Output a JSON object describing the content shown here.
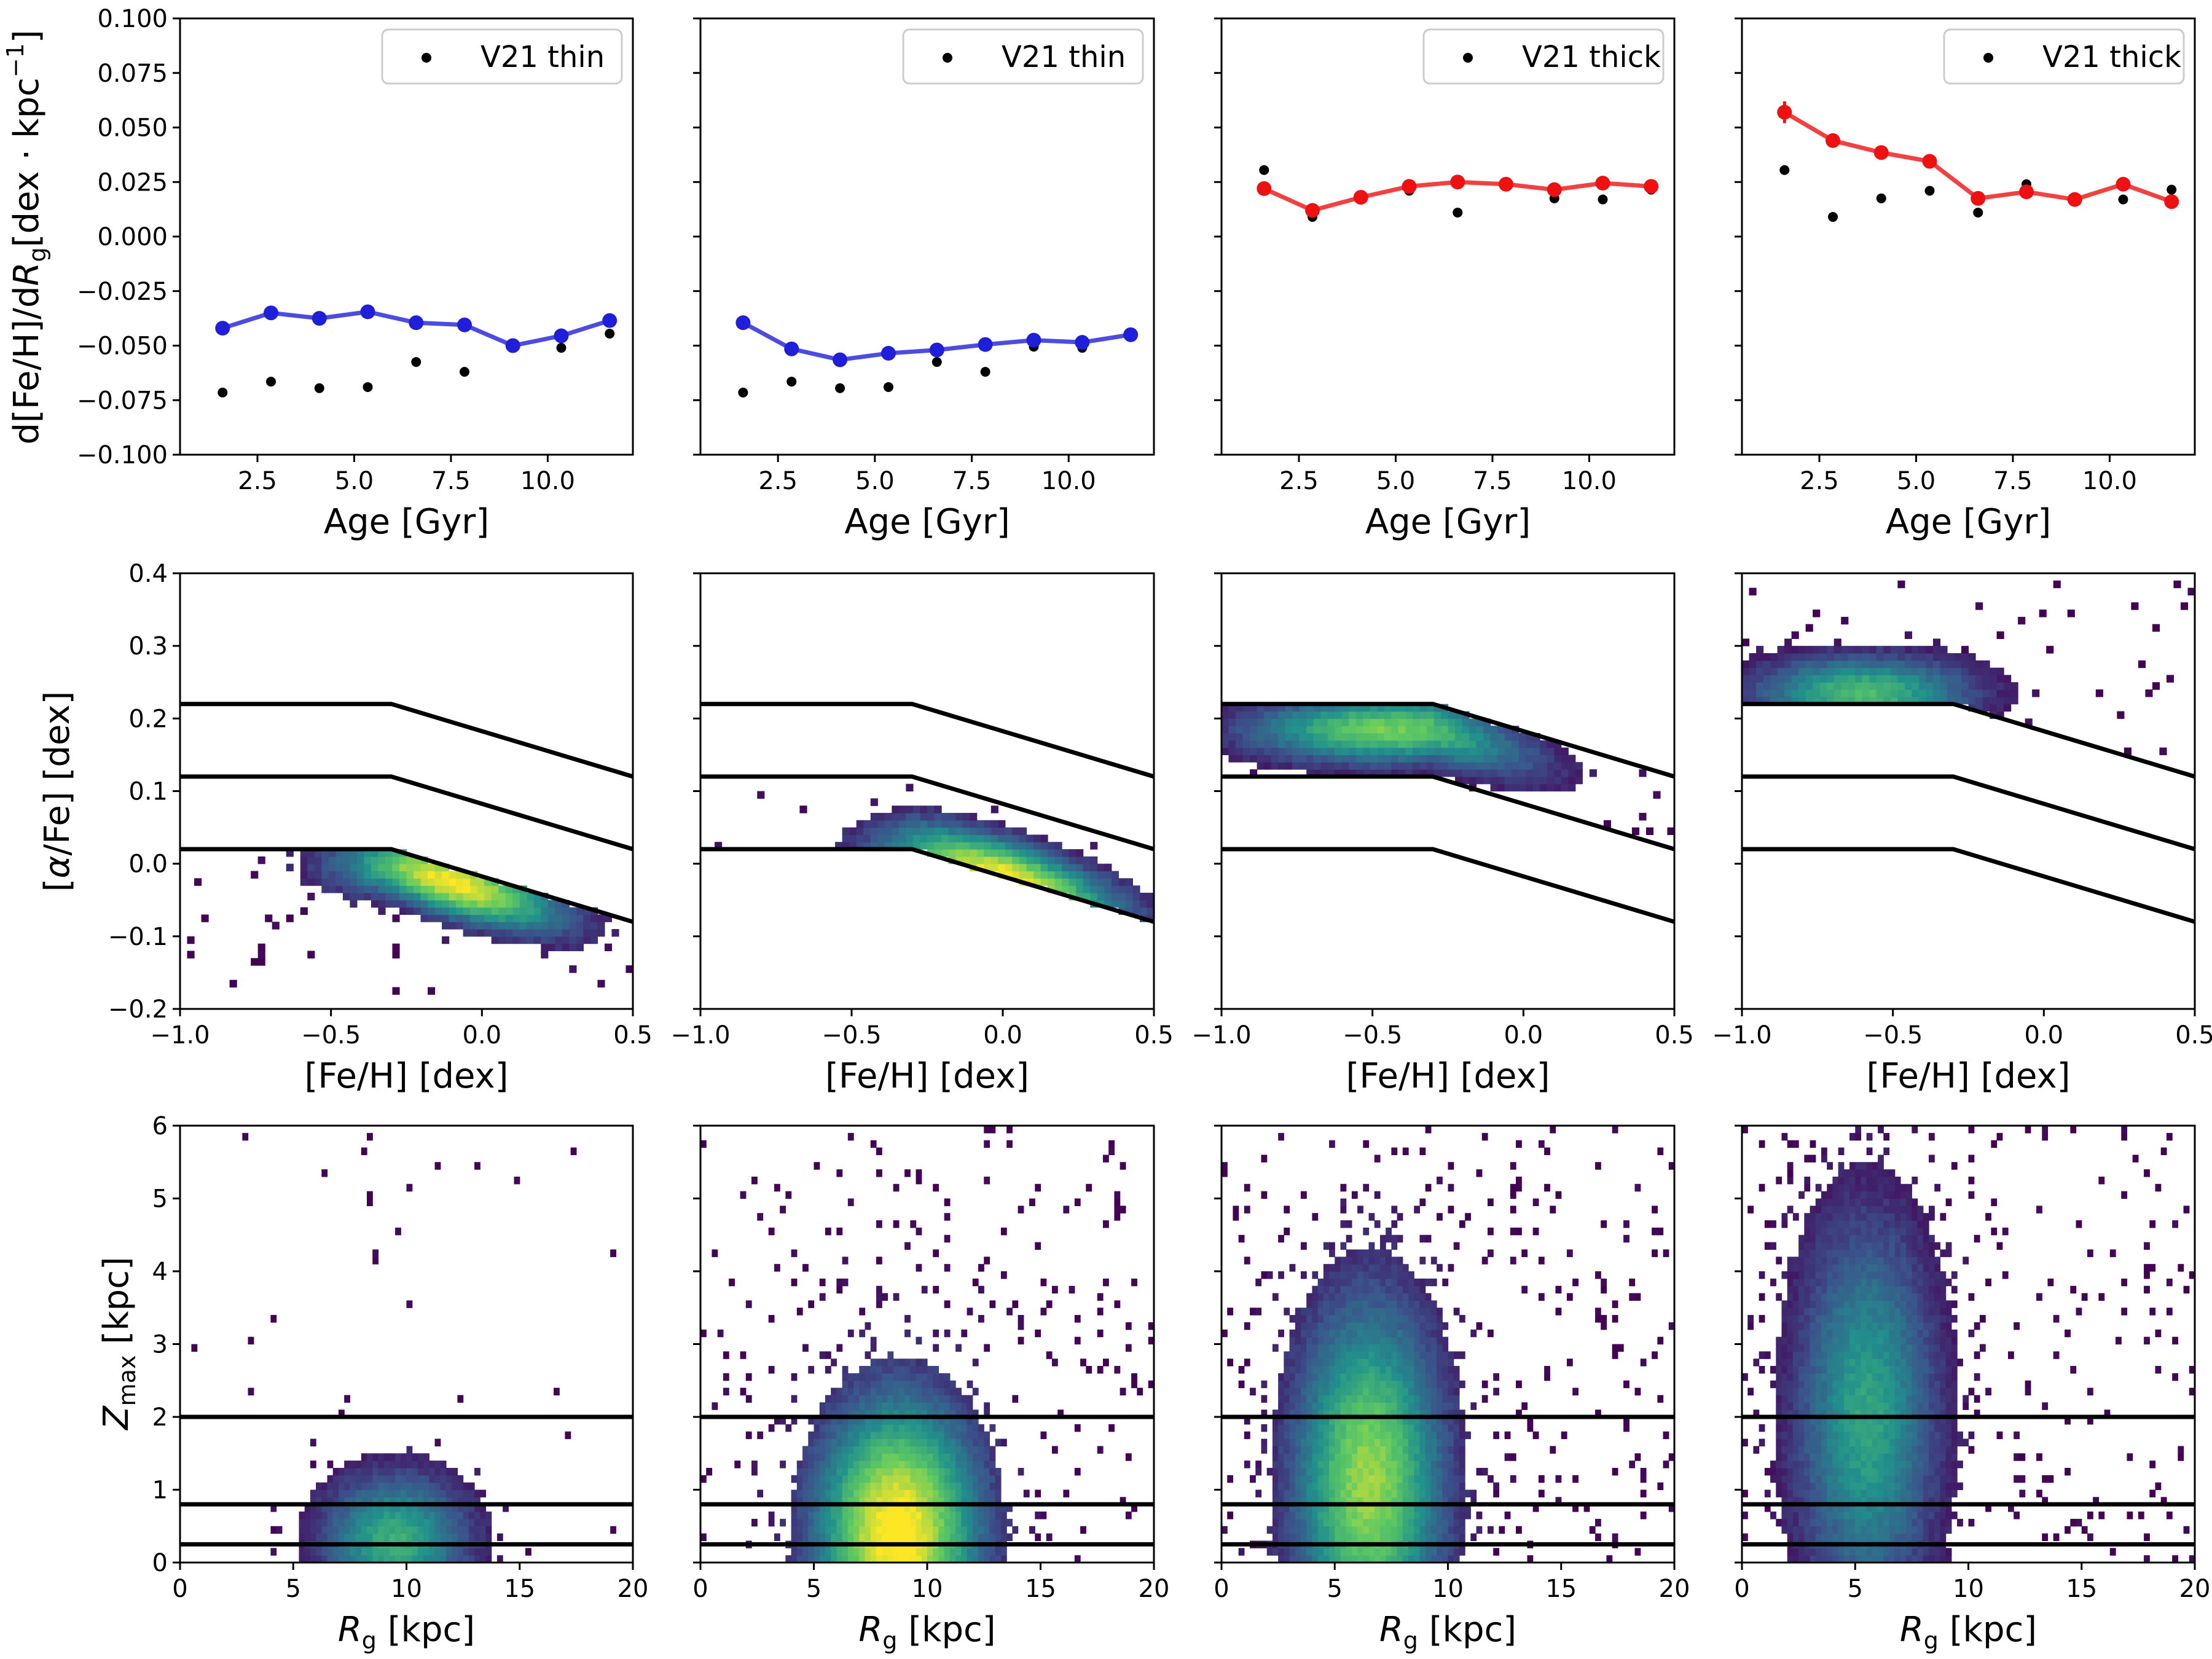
{
  "chart_data": {
    "type": "scatter",
    "rows": [
      {
        "row": "gradient",
        "xlabel": "Age [Gyr]",
        "ylabel": "d[Fe/H]/dR_g [dex · kpc⁻¹]",
        "xlim": [
          0.5,
          12.2
        ],
        "ylim": [
          -0.1,
          0.1
        ],
        "xticks": [
          "2.5",
          "5.0",
          "7.5",
          "10.0"
        ],
        "yticks": [
          "−0.100",
          "−0.075",
          "−0.050",
          "−0.025",
          "0.000",
          "0.025",
          "0.050",
          "0.075",
          "0.100"
        ],
        "legend_placement": "top-right",
        "panels": [
          {
            "legend": "V21 thin",
            "series_color": "#1f1fd9",
            "x": [
              1.6,
              2.85,
              4.1,
              5.35,
              6.6,
              7.85,
              9.1,
              10.35,
              11.6
            ],
            "y": [
              -0.042,
              -0.035,
              -0.0375,
              -0.0345,
              -0.0395,
              -0.0405,
              -0.05,
              -0.0455,
              -0.0385
            ],
            "ref_y": [
              -0.0715,
              -0.0665,
              -0.0695,
              -0.069,
              -0.0575,
              -0.062,
              -0.0505,
              -0.051,
              -0.0445
            ]
          },
          {
            "legend": "V21 thin",
            "series_color": "#1f1fd9",
            "x": [
              1.6,
              2.85,
              4.1,
              5.35,
              6.6,
              7.85,
              9.1,
              10.35,
              11.6
            ],
            "y": [
              -0.0395,
              -0.0515,
              -0.0565,
              -0.0535,
              -0.052,
              -0.0495,
              -0.0475,
              -0.0485,
              -0.045
            ],
            "ref_y": [
              -0.0715,
              -0.0665,
              -0.0695,
              -0.069,
              -0.0575,
              -0.062,
              -0.0505,
              -0.051,
              -0.0445
            ]
          },
          {
            "legend": "V21 thick",
            "series_color": "#ee1111",
            "x": [
              1.6,
              2.85,
              4.1,
              5.35,
              6.6,
              7.85,
              9.1,
              10.35,
              11.6
            ],
            "y": [
              0.022,
              0.012,
              0.018,
              0.023,
              0.025,
              0.024,
              0.0215,
              0.0245,
              0.023
            ],
            "ref_y": [
              0.0305,
              0.009,
              0.0175,
              0.021,
              0.011,
              0.024,
              0.0175,
              0.017,
              0.0215
            ]
          },
          {
            "legend": "V21 thick",
            "series_color": "#ee1111",
            "x": [
              1.6,
              2.85,
              4.1,
              5.35,
              6.6,
              7.85,
              9.1,
              10.35,
              11.6
            ],
            "y": [
              0.057,
              0.044,
              0.0385,
              0.0345,
              0.0175,
              0.0205,
              0.017,
              0.024,
              0.016
            ],
            "yerr": [
              0.005,
              0.002,
              0.0015,
              0.0015,
              0.002,
              0.0015,
              0.0015,
              0.0015,
              0.0015
            ],
            "ref_y": [
              0.0305,
              0.009,
              0.0175,
              0.021,
              0.011,
              0.024,
              0.0175,
              0.017,
              0.0215
            ]
          }
        ]
      },
      {
        "row": "alpha_feh",
        "type": "heatmap",
        "xlabel": "[Fe/H] [dex]",
        "ylabel": "[α/Fe] [dex]",
        "xlim": [
          -1.0,
          0.5
        ],
        "ylim": [
          -0.2,
          0.4
        ],
        "xticks": [
          "−1.0",
          "−0.5",
          "0.0",
          "0.5"
        ],
        "yticks": [
          "−0.2",
          "−0.1",
          "0.0",
          "0.1",
          "0.2",
          "0.3",
          "0.4"
        ],
        "boundaries": {
          "feh_knee": -0.3,
          "offsets": [
            0.02,
            0.12,
            0.22
          ],
          "slope_after_knee": -0.125
        },
        "panels": [
          {
            "selection": "below 0.02 line"
          },
          {
            "selection": "between 0.02 and 0.12 lines"
          },
          {
            "selection": "between 0.12 and 0.22 lines"
          },
          {
            "selection": "above 0.22 line"
          }
        ]
      },
      {
        "row": "zmax_rg",
        "type": "heatmap",
        "xlabel": "R_g [kpc]",
        "ylabel": "Z_max [kpc]",
        "xlim": [
          0,
          20
        ],
        "ylim": [
          0,
          6
        ],
        "xticks": [
          "0",
          "5",
          "10",
          "15",
          "20"
        ],
        "yticks": [
          "0",
          "1",
          "2",
          "3",
          "4",
          "5",
          "6"
        ],
        "hlines": [
          0.25,
          0.8,
          2.0
        ]
      }
    ],
    "colormap": [
      "#440154",
      "#3b528b",
      "#21918c",
      "#5ec962",
      "#fde725"
    ]
  },
  "axis_text": {
    "top_ylabel_main": "d[Fe/H]/d",
    "top_ylabel_R": "R",
    "top_ylabel_sub": "g",
    "top_ylabel_tail": "[dex · kpc",
    "top_ylabel_sup": "−1",
    "top_ylabel_close": "]",
    "age_label": "Age [Gyr]",
    "mid_ylabel_pre": "[",
    "mid_ylabel_alpha": "α",
    "mid_ylabel_post": "/Fe] [dex]",
    "mid_xlabel": "[Fe/H] [dex]",
    "bot_ylabel_Z": "Z",
    "bot_ylabel_sub": "max",
    "bot_ylabel_tail": " [kpc]",
    "bot_xlabel_R": "R",
    "bot_xlabel_sub": "g",
    "bot_xlabel_tail": " [kpc]"
  }
}
